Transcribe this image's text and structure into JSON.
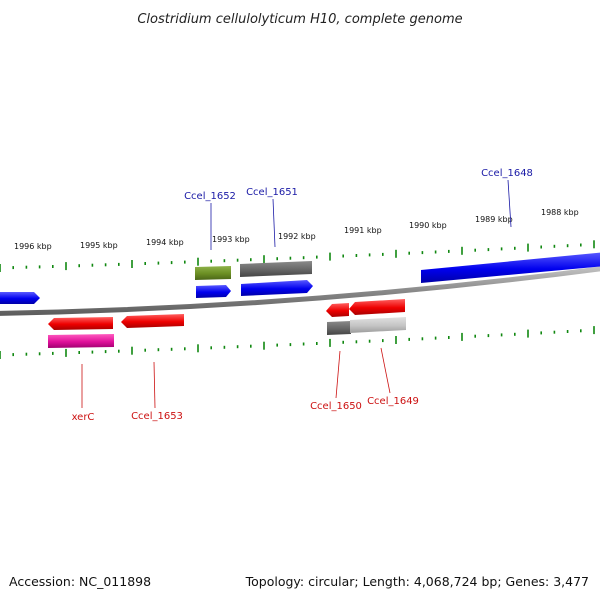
{
  "title": "Clostridium cellulolyticum H10, complete genome",
  "accession": "Accession: NC_011898",
  "summary": "Topology: circular; Length: 4,068,724 bp; Genes: 3,477",
  "scale_labels": [
    "1996 kbp",
    "1995 kbp",
    "1994 kbp",
    "1993 kbp",
    "1992 kbp",
    "1991 kbp",
    "1990 kbp",
    "1989 kbp",
    "1988 kbp"
  ],
  "gene_labels": {
    "ccel_1652": "Ccel_1652",
    "ccel_1651": "Ccel_1651",
    "ccel_1648": "Ccel_1648",
    "xerc": "xerC",
    "ccel_1653": "Ccel_1653",
    "ccel_1650": "Ccel_1650",
    "ccel_1649": "Ccel_1649"
  },
  "colors": {
    "forward_gene": "#0000ee",
    "reverse_gene": "#ee0000",
    "trna": "#6b8e23",
    "pseudo": "#666666",
    "rrna": "#e0109a",
    "backbone": "#888888",
    "ticks": "#118811"
  }
}
